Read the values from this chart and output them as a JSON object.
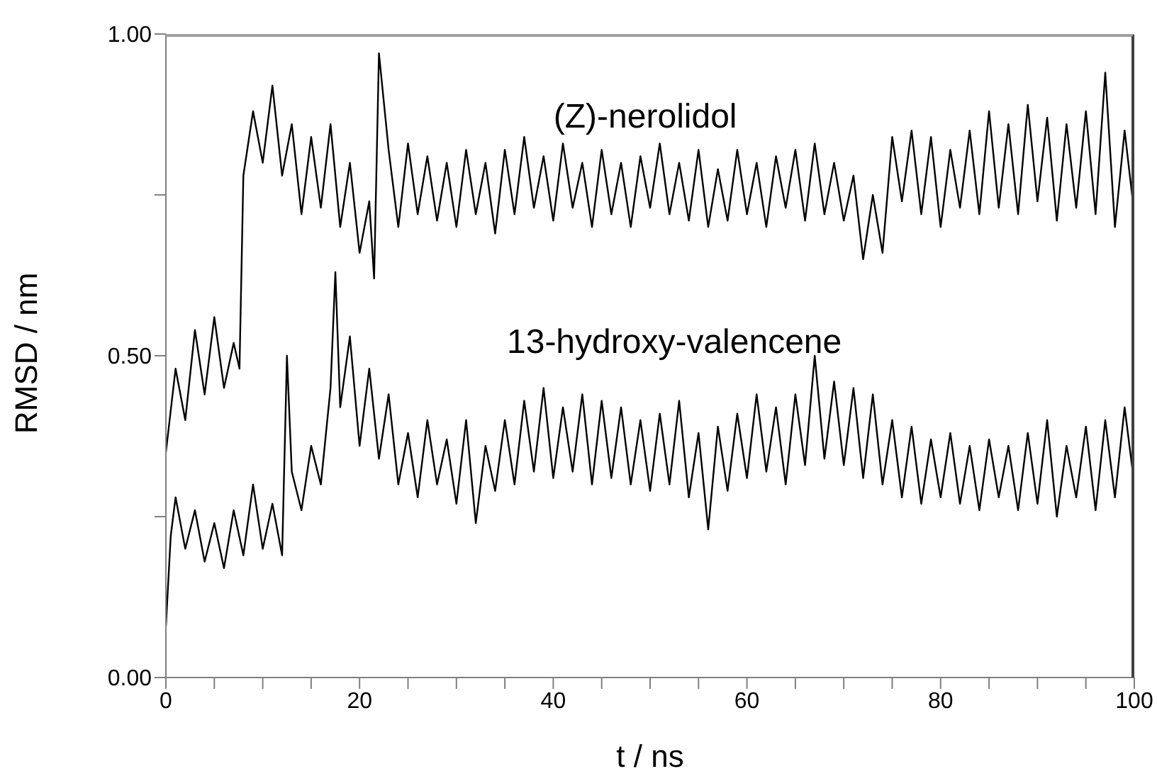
{
  "chart_data": {
    "type": "line",
    "xlabel": "t / ns",
    "ylabel": "RMSD / nm",
    "xlim": [
      0,
      100
    ],
    "ylim": [
      0,
      1
    ],
    "xticks": [
      {
        "value": 0,
        "label": "0"
      },
      {
        "value": 5,
        "label": null
      },
      {
        "value": 10,
        "label": null
      },
      {
        "value": 15,
        "label": null
      },
      {
        "value": 20,
        "label": "20"
      },
      {
        "value": 25,
        "label": null
      },
      {
        "value": 30,
        "label": null
      },
      {
        "value": 35,
        "label": null
      },
      {
        "value": 40,
        "label": "40"
      },
      {
        "value": 45,
        "label": null
      },
      {
        "value": 50,
        "label": null
      },
      {
        "value": 55,
        "label": null
      },
      {
        "value": 60,
        "label": "60"
      },
      {
        "value": 65,
        "label": null
      },
      {
        "value": 70,
        "label": null
      },
      {
        "value": 75,
        "label": null
      },
      {
        "value": 80,
        "label": "80"
      },
      {
        "value": 85,
        "label": null
      },
      {
        "value": 90,
        "label": null
      },
      {
        "value": 95,
        "label": null
      },
      {
        "value": 100,
        "label": "100"
      }
    ],
    "yticks": [
      {
        "value": 0,
        "label": "0.00"
      },
      {
        "value": 0.25,
        "label": null
      },
      {
        "value": 0.5,
        "label": "0.50"
      },
      {
        "value": 0.75,
        "label": null
      },
      {
        "value": 1,
        "label": "1.00"
      }
    ],
    "grid": false,
    "legend": false,
    "marker": "none",
    "line_style": "solid",
    "series": [
      {
        "name": "(Z)-nerolidol",
        "color": "#000000",
        "x": [
          0,
          1,
          2,
          3,
          4,
          5,
          6,
          7,
          7.6,
          8,
          9,
          10,
          11,
          12,
          13,
          14,
          15,
          16,
          17,
          18,
          19,
          20,
          21,
          21.5,
          22,
          23,
          24,
          25,
          26,
          27,
          28,
          29,
          30,
          31,
          32,
          33,
          34,
          35,
          36,
          37,
          38,
          39,
          40,
          41,
          42,
          43,
          44,
          45,
          46,
          47,
          48,
          49,
          50,
          51,
          52,
          53,
          54,
          55,
          56,
          57,
          58,
          59,
          60,
          61,
          62,
          63,
          64,
          65,
          66,
          67,
          68,
          69,
          70,
          71,
          72,
          73,
          74,
          75,
          76,
          77,
          78,
          79,
          80,
          81,
          82,
          83,
          84,
          85,
          86,
          87,
          88,
          89,
          90,
          91,
          92,
          93,
          94,
          95,
          96,
          97,
          98,
          99,
          100
        ],
        "values": [
          0.35,
          0.48,
          0.4,
          0.54,
          0.44,
          0.56,
          0.45,
          0.52,
          0.48,
          0.78,
          0.88,
          0.8,
          0.92,
          0.78,
          0.86,
          0.72,
          0.84,
          0.73,
          0.86,
          0.7,
          0.8,
          0.66,
          0.74,
          0.62,
          0.97,
          0.82,
          0.7,
          0.83,
          0.72,
          0.81,
          0.71,
          0.8,
          0.7,
          0.82,
          0.72,
          0.8,
          0.69,
          0.82,
          0.72,
          0.84,
          0.73,
          0.81,
          0.71,
          0.83,
          0.73,
          0.8,
          0.7,
          0.82,
          0.72,
          0.8,
          0.7,
          0.81,
          0.73,
          0.83,
          0.72,
          0.8,
          0.71,
          0.82,
          0.7,
          0.79,
          0.71,
          0.82,
          0.72,
          0.8,
          0.7,
          0.81,
          0.73,
          0.82,
          0.71,
          0.83,
          0.72,
          0.8,
          0.71,
          0.78,
          0.65,
          0.75,
          0.66,
          0.84,
          0.74,
          0.85,
          0.72,
          0.84,
          0.7,
          0.82,
          0.73,
          0.85,
          0.72,
          0.88,
          0.73,
          0.86,
          0.72,
          0.89,
          0.74,
          0.87,
          0.71,
          0.86,
          0.73,
          0.88,
          0.72,
          0.94,
          0.7,
          0.85,
          0.72
        ]
      },
      {
        "name": "13-hydroxy-valencene",
        "color": "#000000",
        "x": [
          0,
          0.5,
          1,
          2,
          3,
          4,
          5,
          6,
          7,
          8,
          9,
          10,
          11,
          12,
          12.5,
          13,
          14,
          15,
          16,
          17,
          17.5,
          18,
          19,
          20,
          21,
          22,
          23,
          24,
          25,
          26,
          27,
          28,
          29,
          30,
          31,
          32,
          33,
          34,
          35,
          36,
          37,
          38,
          39,
          40,
          41,
          42,
          43,
          44,
          45,
          46,
          47,
          48,
          49,
          50,
          51,
          52,
          53,
          54,
          55,
          56,
          57,
          58,
          59,
          60,
          61,
          62,
          63,
          64,
          65,
          66,
          67,
          68,
          69,
          70,
          71,
          72,
          73,
          74,
          75,
          76,
          77,
          78,
          79,
          80,
          81,
          82,
          83,
          84,
          85,
          86,
          87,
          88,
          89,
          90,
          91,
          92,
          93,
          94,
          95,
          96,
          97,
          98,
          99,
          100
        ],
        "values": [
          0.08,
          0.22,
          0.28,
          0.2,
          0.26,
          0.18,
          0.24,
          0.17,
          0.26,
          0.19,
          0.3,
          0.2,
          0.27,
          0.19,
          0.5,
          0.32,
          0.26,
          0.36,
          0.3,
          0.45,
          0.63,
          0.42,
          0.53,
          0.36,
          0.48,
          0.34,
          0.44,
          0.3,
          0.38,
          0.28,
          0.4,
          0.3,
          0.37,
          0.27,
          0.4,
          0.24,
          0.36,
          0.29,
          0.4,
          0.3,
          0.43,
          0.32,
          0.45,
          0.31,
          0.42,
          0.32,
          0.44,
          0.3,
          0.43,
          0.31,
          0.42,
          0.3,
          0.4,
          0.29,
          0.41,
          0.3,
          0.43,
          0.28,
          0.38,
          0.23,
          0.39,
          0.29,
          0.41,
          0.31,
          0.44,
          0.32,
          0.42,
          0.3,
          0.44,
          0.33,
          0.5,
          0.34,
          0.46,
          0.33,
          0.45,
          0.31,
          0.44,
          0.3,
          0.4,
          0.28,
          0.39,
          0.27,
          0.37,
          0.28,
          0.38,
          0.27,
          0.36,
          0.26,
          0.37,
          0.28,
          0.36,
          0.26,
          0.38,
          0.27,
          0.4,
          0.25,
          0.36,
          0.28,
          0.39,
          0.26,
          0.4,
          0.28,
          0.42,
          0.3
        ]
      }
    ]
  }
}
